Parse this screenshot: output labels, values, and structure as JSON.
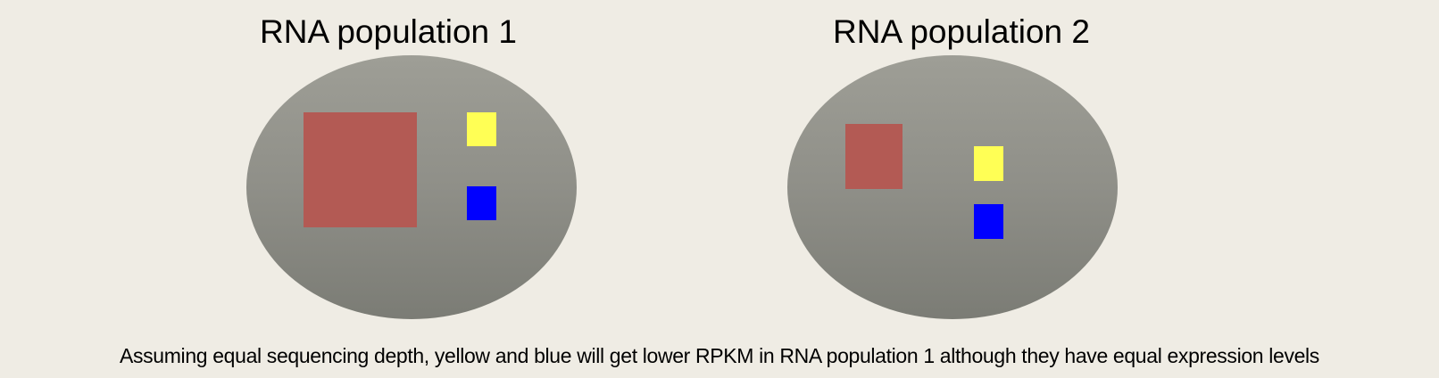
{
  "populations": [
    {
      "title": "RNA population 1",
      "fill": "#8f8f88",
      "transcripts": [
        {
          "name": "red",
          "color": "#b35a54"
        },
        {
          "name": "yellow",
          "color": "#ffff55"
        },
        {
          "name": "blue",
          "color": "#0000ff"
        }
      ]
    },
    {
      "title": "RNA population 2",
      "fill": "#8f8f88",
      "transcripts": [
        {
          "name": "red",
          "color": "#b35a54"
        },
        {
          "name": "yellow",
          "color": "#ffff55"
        },
        {
          "name": "blue",
          "color": "#0000ff"
        }
      ]
    }
  ],
  "caption": "Assuming equal sequencing depth, yellow and blue will get lower RPKM in RNA population 1 although they have equal expression levels",
  "colors": {
    "background": "#efece4"
  }
}
